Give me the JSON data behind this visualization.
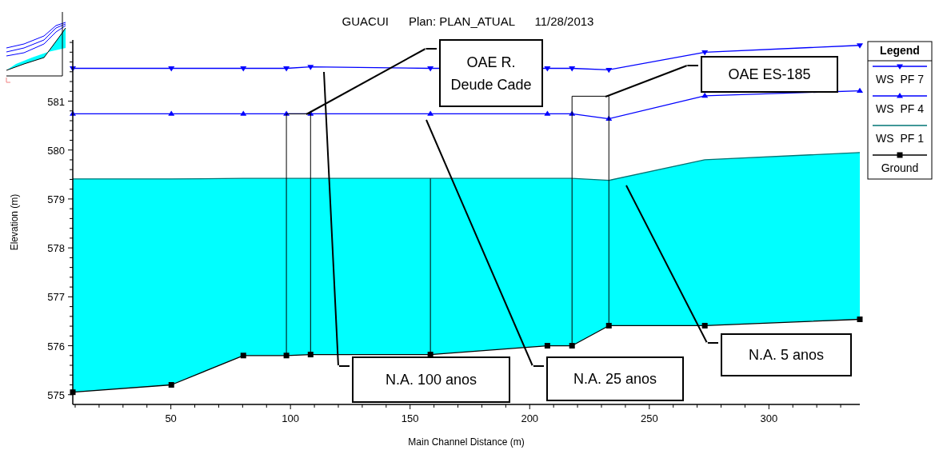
{
  "chart_data": {
    "type": "line",
    "title": "GUACUI      Plan: PLAN_ATUAL      11/28/2013",
    "xlabel": "Main Channel Distance (m)",
    "ylabel": "Elevation (m)",
    "legend_title": "Legend",
    "legend": "right",
    "grid": false,
    "x": [
      9,
      50.2,
      80.3,
      98.3,
      108.4,
      158.5,
      207.4,
      217.7,
      233.1,
      273.2,
      338
    ],
    "xlim": [
      9,
      338
    ],
    "xticks": [
      {
        "value": 10,
        "label": null
      },
      {
        "value": 20,
        "label": null
      },
      {
        "value": 30,
        "label": null
      },
      {
        "value": 40,
        "label": null
      },
      50,
      {
        "value": 60,
        "label": null
      },
      {
        "value": 70,
        "label": null
      },
      {
        "value": 80,
        "label": null
      },
      {
        "value": 90,
        "label": null
      },
      100,
      {
        "value": 110,
        "label": null
      },
      {
        "value": 120,
        "label": null
      },
      {
        "value": 130,
        "label": null
      },
      {
        "value": 140,
        "label": null
      },
      150,
      {
        "value": 160,
        "label": null
      },
      {
        "value": 170,
        "label": null
      },
      {
        "value": 180,
        "label": null
      },
      {
        "value": 190,
        "label": null
      },
      200,
      {
        "value": 210,
        "label": null
      },
      {
        "value": 220,
        "label": null
      },
      {
        "value": 230,
        "label": null
      },
      {
        "value": 240,
        "label": null
      },
      250,
      {
        "value": 260,
        "label": null
      },
      {
        "value": 270,
        "label": null
      },
      {
        "value": 280,
        "label": null
      },
      {
        "value": 290,
        "label": null
      },
      300,
      {
        "value": 310,
        "label": null
      },
      {
        "value": 320,
        "label": null
      },
      {
        "value": 330,
        "label": null
      }
    ],
    "ylim": [
      574.8,
      582.25
    ],
    "yticks": [
      575,
      {
        "value": 575.2,
        "label": null
      },
      {
        "value": 575.4,
        "label": null
      },
      {
        "value": 575.6,
        "label": null
      },
      {
        "value": 575.8,
        "label": null
      },
      576,
      {
        "value": 576.2,
        "label": null
      },
      {
        "value": 576.4,
        "label": null
      },
      {
        "value": 576.6,
        "label": null
      },
      {
        "value": 576.8,
        "label": null
      },
      577,
      {
        "value": 577.2,
        "label": null
      },
      {
        "value": 577.4,
        "label": null
      },
      {
        "value": 577.6,
        "label": null
      },
      {
        "value": 577.8,
        "label": null
      },
      578,
      {
        "value": 578.2,
        "label": null
      },
      {
        "value": 578.4,
        "label": null
      },
      {
        "value": 578.6,
        "label": null
      },
      {
        "value": 578.8,
        "label": null
      },
      579,
      {
        "value": 579.2,
        "label": null
      },
      {
        "value": 579.4,
        "label": null
      },
      {
        "value": 579.6,
        "label": null
      },
      {
        "value": 579.8,
        "label": null
      },
      580,
      {
        "value": 580.2,
        "label": null
      },
      {
        "value": 580.4,
        "label": null
      },
      {
        "value": 580.6,
        "label": null
      },
      {
        "value": 580.8,
        "label": null
      },
      581,
      {
        "value": 581.2,
        "label": null
      },
      {
        "value": 581.4,
        "label": null
      },
      {
        "value": 581.6,
        "label": null
      },
      {
        "value": 581.8,
        "label": null
      },
      {
        "value": 582,
        "label": null
      },
      {
        "value": 582.2,
        "label": null
      }
    ],
    "series": [
      {
        "name": "WS  PF 7",
        "color": "#0000ff",
        "marker": "triangle-down",
        "values": [
          581.67,
          581.67,
          581.67,
          581.67,
          581.7,
          581.67,
          581.67,
          581.67,
          581.64,
          582.0,
          582.14
        ]
      },
      {
        "name": "WS  PF 4",
        "color": "#0000ff",
        "marker": "triangle",
        "values": [
          580.74,
          580.74,
          580.74,
          580.74,
          580.74,
          580.74,
          580.74,
          580.74,
          580.64,
          581.11,
          581.21
        ]
      },
      {
        "name": "WS  PF 1",
        "type": "area",
        "color": "#00ffff",
        "marker": "none",
        "values": [
          579.41,
          579.41,
          579.42,
          579.42,
          579.42,
          579.42,
          579.42,
          579.42,
          579.38,
          579.8,
          579.95
        ]
      },
      {
        "name": "Ground",
        "color": "#000000",
        "marker": "square",
        "values": [
          575.05,
          575.2,
          575.8,
          575.8,
          575.82,
          575.82,
          576.0,
          576.0,
          576.41,
          576.41,
          576.54
        ]
      },
      {
        "color": "#000000",
        "marker": "none",
        "x": [
          98.3,
          98.3,
          108.4,
          108.4
        ],
        "values": [
          575.8,
          580.74,
          580.74,
          575.82
        ]
      },
      {
        "color": "#000000",
        "marker": "none",
        "x": [
          158.5,
          158.5
        ],
        "values": [
          575.82,
          579.42
        ]
      },
      {
        "color": "#000000",
        "marker": "none",
        "x": [
          217.7,
          217.7,
          233.1,
          233.1
        ],
        "values": [
          576.0,
          581.1,
          581.1,
          576.41
        ]
      }
    ],
    "annotations": [
      "OAE R. Deude Cade",
      "OAE ES-185",
      "N.A. 100 anos",
      "N.A. 25 anos",
      "N.A. 5 anos"
    ]
  }
}
